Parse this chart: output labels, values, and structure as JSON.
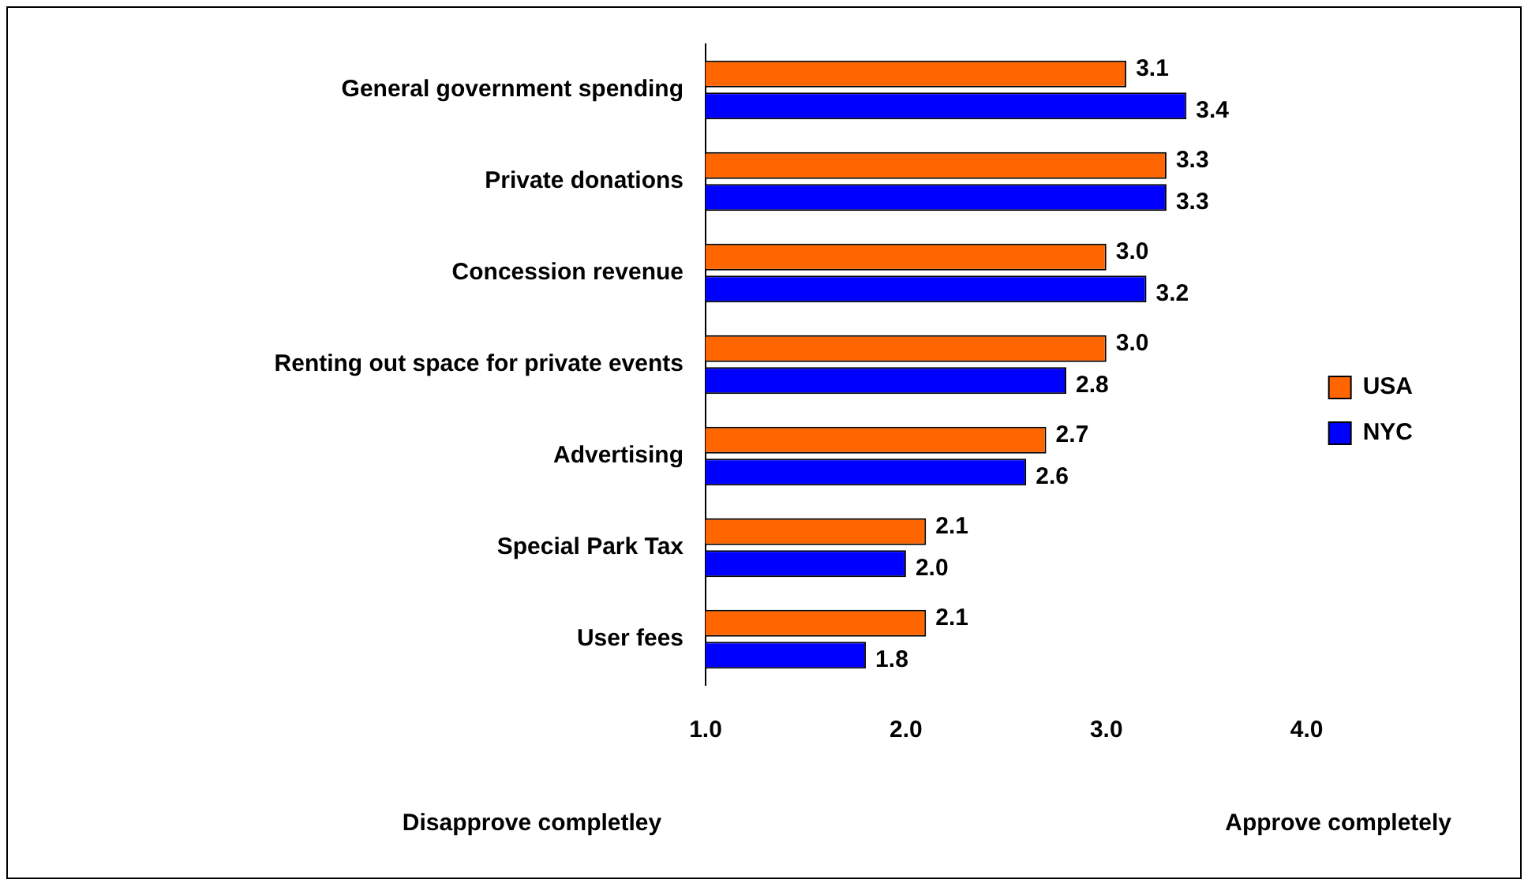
{
  "chart_data": {
    "type": "bar",
    "orientation": "horizontal",
    "categories": [
      "General government spending",
      "Private donations",
      "Concession revenue",
      "Renting out space for private events",
      "Advertising",
      "Special Park Tax",
      "User fees"
    ],
    "series": [
      {
        "name": "USA",
        "color": "#ff6600",
        "values": [
          3.1,
          3.3,
          3.0,
          3.0,
          2.7,
          2.1,
          2.1
        ],
        "value_labels": [
          "3.1",
          "3.3",
          "3.0",
          "3.0",
          "2.7",
          "2.1",
          "2.1"
        ]
      },
      {
        "name": "NYC",
        "color": "#0000ff",
        "values": [
          3.4,
          3.3,
          3.2,
          2.8,
          2.6,
          2.0,
          1.8
        ],
        "value_labels": [
          "3.4",
          "3.3",
          "3.2",
          "2.8",
          "2.6",
          "2.0",
          "1.8"
        ]
      }
    ],
    "xlim": [
      1,
      4
    ],
    "xticks": [
      {
        "value": 1,
        "label": "1.0"
      },
      {
        "value": 2,
        "label": "2.0"
      },
      {
        "value": 3,
        "label": "3.0"
      },
      {
        "value": 4,
        "label": "4.0"
      }
    ],
    "grid": false,
    "legend": "right",
    "annotations": [
      "Disapprove completley",
      "Approve completely"
    ]
  }
}
